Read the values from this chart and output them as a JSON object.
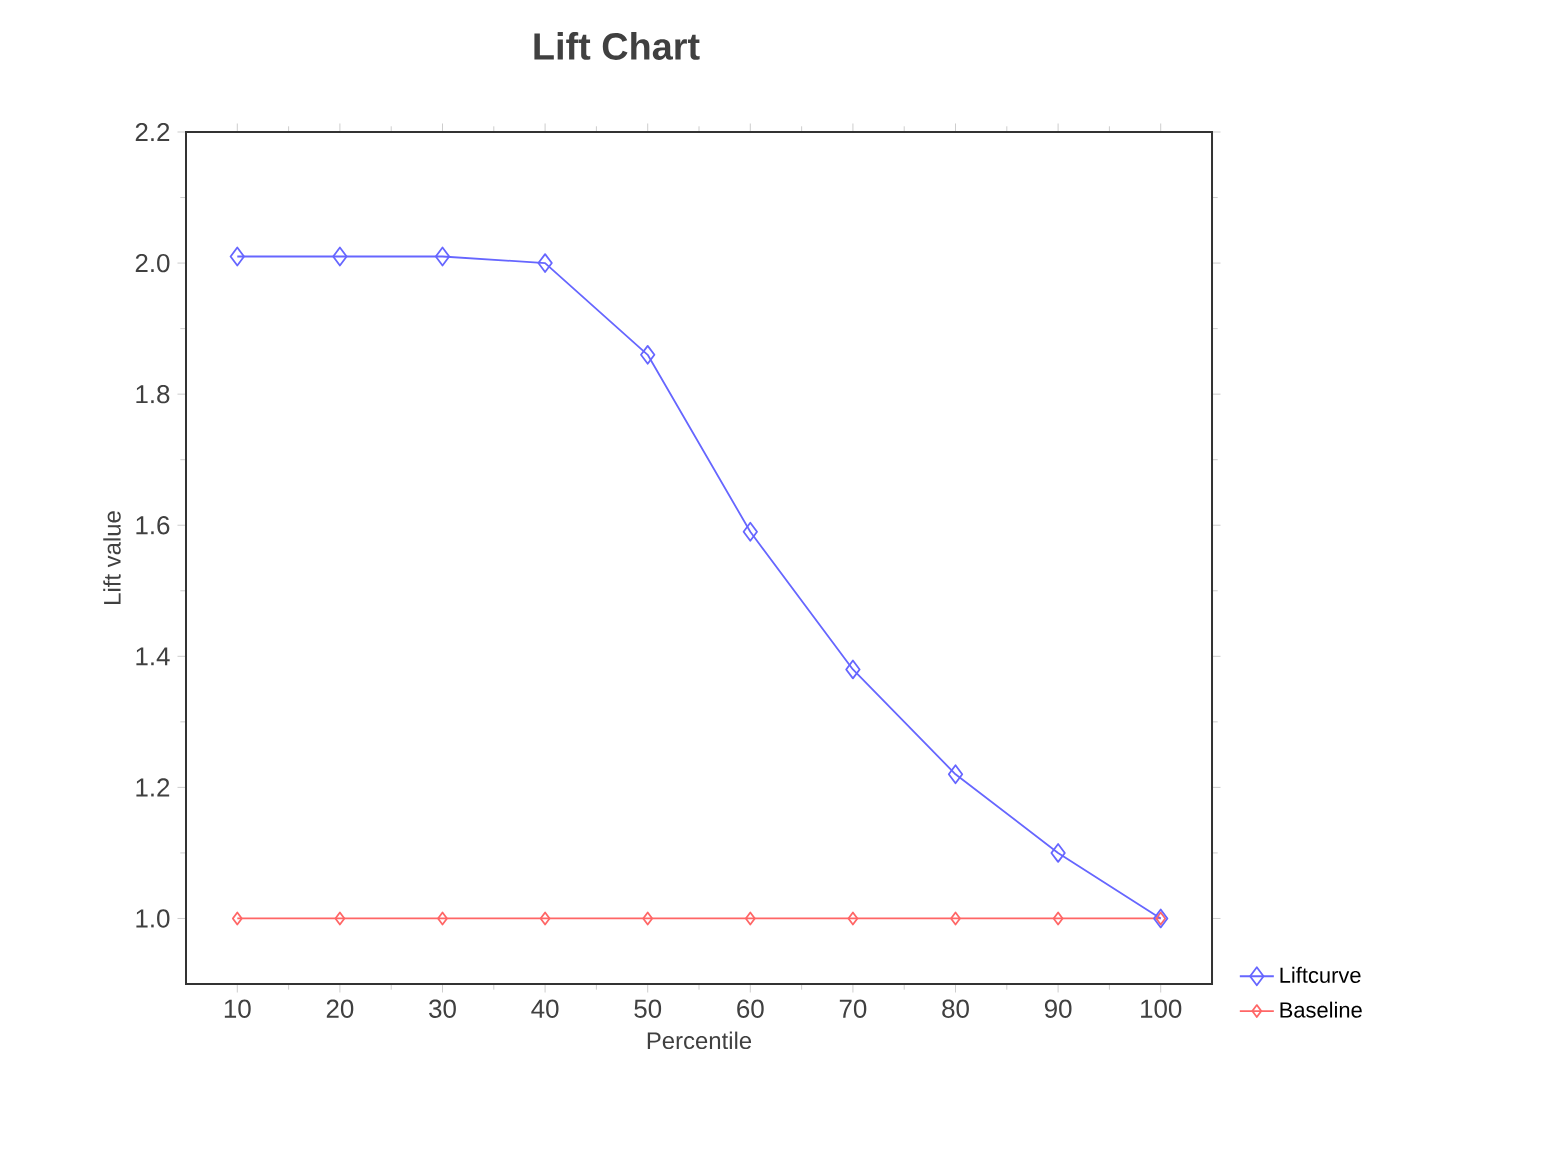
{
  "chart_data": {
    "type": "line",
    "title": "Lift Chart",
    "xlabel": "Percentile",
    "ylabel": "Lift value",
    "x": [
      10,
      20,
      30,
      40,
      50,
      60,
      70,
      80,
      90,
      100
    ],
    "series": [
      {
        "name": "Liftcurve",
        "color": "#6666ff",
        "values": [
          2.01,
          2.01,
          2.01,
          2.0,
          1.86,
          1.59,
          1.38,
          1.22,
          1.1,
          1.0
        ]
      },
      {
        "name": "Baseline",
        "color": "#ff6666",
        "values": [
          1.0,
          1.0,
          1.0,
          1.0,
          1.0,
          1.0,
          1.0,
          1.0,
          1.0,
          1.0
        ]
      }
    ],
    "xlim": [
      5,
      105
    ],
    "ylim": [
      0.9,
      2.2
    ],
    "xticks": [
      10,
      20,
      30,
      40,
      50,
      60,
      70,
      80,
      90,
      100
    ],
    "yticks": [
      {
        "value": 1.0,
        "label": "1.0"
      },
      {
        "value": 1.2,
        "label": "1.2"
      },
      {
        "value": 1.4,
        "label": "1.4"
      },
      {
        "value": 1.6,
        "label": "1.6"
      },
      {
        "value": 1.8,
        "label": "1.8"
      },
      {
        "value": 2.0,
        "label": "2.0"
      },
      {
        "value": 2.2,
        "label": "2.2"
      }
    ],
    "marker": "diamond",
    "legend": "bottom right",
    "grid": false
  }
}
